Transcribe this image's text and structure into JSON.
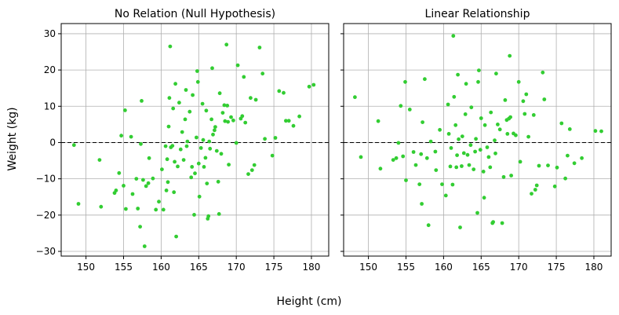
{
  "figure": {
    "xlabel": "Height (cm)",
    "ylabel": "Weight (kg)"
  },
  "style": {
    "point_color": "#32cd32",
    "grid_color": "#b0b0b0",
    "reference_line_color": "#000000"
  },
  "chart_data": [
    {
      "type": "scatter",
      "title": "No Relation (Null Hypothesis)",
      "xlim": [
        146.7,
        182.3
      ],
      "ylim": [
        -31.3,
        32.8
      ],
      "xticks": [
        150,
        155,
        160,
        165,
        170,
        175,
        180
      ],
      "yticks": [
        -30,
        -20,
        -10,
        0,
        10,
        20,
        30
      ],
      "ytick_labels": [
        "−30",
        "−20",
        "−10",
        "0",
        "10",
        "20",
        "30"
      ],
      "grid": true,
      "reference_line": {
        "y": 0,
        "style": "dashed"
      },
      "points": [
        [
          148.4,
          -0.7
        ],
        [
          149.0,
          -16.9
        ],
        [
          151.8,
          -4.8
        ],
        [
          152.0,
          -17.7
        ],
        [
          153.8,
          -13.9
        ],
        [
          154.0,
          -13.2
        ],
        [
          154.4,
          -8.4
        ],
        [
          154.7,
          1.9
        ],
        [
          155.0,
          -11.9
        ],
        [
          155.2,
          8.9
        ],
        [
          155.3,
          -18.3
        ],
        [
          156.0,
          1.6
        ],
        [
          156.2,
          -14.2
        ],
        [
          156.7,
          -10.0
        ],
        [
          156.9,
          -18.2
        ],
        [
          157.2,
          -23.2
        ],
        [
          157.3,
          -0.4
        ],
        [
          157.4,
          11.5
        ],
        [
          157.6,
          -10.3
        ],
        [
          157.8,
          -28.6
        ],
        [
          158.0,
          -12.0
        ],
        [
          158.3,
          -11.2
        ],
        [
          158.4,
          -4.3
        ],
        [
          158.9,
          -9.9
        ],
        [
          159.3,
          -18.5
        ],
        [
          159.7,
          -16.3
        ],
        [
          160.1,
          -7.4
        ],
        [
          160.3,
          -18.5
        ],
        [
          160.6,
          -1.0
        ],
        [
          160.7,
          -13.2
        ],
        [
          160.8,
          -4.6
        ],
        [
          160.9,
          -10.9
        ],
        [
          161.0,
          4.4
        ],
        [
          161.1,
          12.3
        ],
        [
          161.2,
          26.5
        ],
        [
          161.3,
          -1.3
        ],
        [
          161.5,
          -0.9
        ],
        [
          161.6,
          9.4
        ],
        [
          161.7,
          -13.7
        ],
        [
          161.8,
          -5.3
        ],
        [
          161.9,
          16.2
        ],
        [
          162.0,
          -25.9
        ],
        [
          162.2,
          -6.6
        ],
        [
          162.4,
          11.0
        ],
        [
          162.6,
          -1.9
        ],
        [
          162.8,
          2.9
        ],
        [
          163.0,
          -4.8
        ],
        [
          163.2,
          6.4
        ],
        [
          163.3,
          14.5
        ],
        [
          163.4,
          -1.0
        ],
        [
          163.5,
          0.3
        ],
        [
          163.8,
          8.5
        ],
        [
          164.0,
          -9.6
        ],
        [
          164.1,
          -6.7
        ],
        [
          164.2,
          13.1
        ],
        [
          164.4,
          -19.9
        ],
        [
          164.5,
          -8.5
        ],
        [
          164.7,
          1.4
        ],
        [
          164.8,
          19.7
        ],
        [
          164.9,
          16.7
        ],
        [
          165.0,
          -5.8
        ],
        [
          165.1,
          -14.9
        ],
        [
          165.3,
          -1.5
        ],
        [
          165.5,
          10.7
        ],
        [
          165.6,
          0.7
        ],
        [
          165.7,
          -6.7
        ],
        [
          165.9,
          -4.2
        ],
        [
          166.0,
          8.8
        ],
        [
          166.1,
          -11.3
        ],
        [
          166.2,
          -21.0
        ],
        [
          166.3,
          -20.3
        ],
        [
          166.4,
          0.3
        ],
        [
          166.5,
          -1.7
        ],
        [
          166.7,
          6.4
        ],
        [
          166.8,
          20.5
        ],
        [
          166.9,
          2.2
        ],
        [
          167.1,
          3.4
        ],
        [
          167.2,
          4.3
        ],
        [
          167.4,
          -2.3
        ],
        [
          167.6,
          -10.8
        ],
        [
          167.7,
          -19.7
        ],
        [
          167.8,
          13.6
        ],
        [
          168.0,
          -3.1
        ],
        [
          168.2,
          8.2
        ],
        [
          168.4,
          10.3
        ],
        [
          168.5,
          5.9
        ],
        [
          168.7,
          27.0
        ],
        [
          168.8,
          10.2
        ],
        [
          168.9,
          5.7
        ],
        [
          169.0,
          -6.1
        ],
        [
          169.3,
          7.0
        ],
        [
          169.6,
          6.1
        ],
        [
          170.0,
          -0.1
        ],
        [
          170.2,
          21.3
        ],
        [
          170.6,
          6.6
        ],
        [
          170.8,
          7.3
        ],
        [
          171.0,
          18.1
        ],
        [
          171.2,
          5.5
        ],
        [
          171.6,
          -8.7
        ],
        [
          171.9,
          12.3
        ],
        [
          172.1,
          -7.6
        ],
        [
          172.4,
          -6.2
        ],
        [
          172.6,
          11.8
        ],
        [
          173.1,
          26.2
        ],
        [
          173.5,
          19.0
        ],
        [
          173.8,
          1.0
        ],
        [
          174.8,
          -3.6
        ],
        [
          175.2,
          1.3
        ],
        [
          175.7,
          14.2
        ],
        [
          176.3,
          13.7
        ],
        [
          176.6,
          6.0
        ],
        [
          177.0,
          6.0
        ],
        [
          177.6,
          4.6
        ],
        [
          178.4,
          7.2
        ],
        [
          179.7,
          15.4
        ],
        [
          180.3,
          15.9
        ]
      ]
    },
    {
      "type": "scatter",
      "title": "Linear Relationship",
      "xlim": [
        146.7,
        182.3
      ],
      "ylim": [
        -31.3,
        32.8
      ],
      "xticks": [
        150,
        155,
        160,
        165,
        170,
        175,
        180
      ],
      "yticks": [
        -30,
        -20,
        -10,
        0,
        10,
        20,
        30
      ],
      "grid": true,
      "reference_line": {
        "y": 0,
        "style": "dashed"
      },
      "points": [
        [
          148.2,
          12.5
        ],
        [
          149.0,
          -4.0
        ],
        [
          151.3,
          5.9
        ],
        [
          151.6,
          -7.2
        ],
        [
          153.3,
          -4.8
        ],
        [
          153.7,
          -4.3
        ],
        [
          154.0,
          -0.1
        ],
        [
          154.3,
          10.1
        ],
        [
          154.6,
          -3.8
        ],
        [
          154.9,
          16.7
        ],
        [
          155.0,
          -10.4
        ],
        [
          155.5,
          9.1
        ],
        [
          156.0,
          -2.6
        ],
        [
          156.3,
          -6.2
        ],
        [
          156.8,
          -11.5
        ],
        [
          157.0,
          -3.2
        ],
        [
          157.1,
          -16.9
        ],
        [
          157.2,
          5.6
        ],
        [
          157.5,
          17.5
        ],
        [
          157.8,
          -4.3
        ],
        [
          158.0,
          -22.8
        ],
        [
          158.3,
          0.3
        ],
        [
          158.9,
          -2.5
        ],
        [
          159.0,
          -7.6
        ],
        [
          159.5,
          3.5
        ],
        [
          159.8,
          -11.5
        ],
        [
          160.3,
          -14.6
        ],
        [
          160.6,
          10.5
        ],
        [
          160.7,
          2.4
        ],
        [
          160.9,
          -6.6
        ],
        [
          161.0,
          -1.5
        ],
        [
          161.2,
          -11.6
        ],
        [
          161.3,
          29.4
        ],
        [
          161.4,
          12.6
        ],
        [
          161.6,
          4.8
        ],
        [
          161.7,
          -6.8
        ],
        [
          161.8,
          -3.5
        ],
        [
          161.9,
          18.7
        ],
        [
          162.0,
          0.9
        ],
        [
          162.2,
          -23.4
        ],
        [
          162.4,
          -6.5
        ],
        [
          162.5,
          1.7
        ],
        [
          162.7,
          -2.9
        ],
        [
          162.9,
          7.8
        ],
        [
          163.0,
          16.2
        ],
        [
          163.2,
          -3.4
        ],
        [
          163.4,
          -6.2
        ],
        [
          163.6,
          -0.7
        ],
        [
          163.7,
          9.7
        ],
        [
          164.0,
          -7.4
        ],
        [
          164.2,
          -2.5
        ],
        [
          164.3,
          1.0
        ],
        [
          164.5,
          -19.4
        ],
        [
          164.6,
          16.7
        ],
        [
          164.7,
          19.9
        ],
        [
          164.9,
          -2.0
        ],
        [
          165.0,
          6.7
        ],
        [
          165.3,
          -8.0
        ],
        [
          165.4,
          -15.2
        ],
        [
          165.5,
          4.8
        ],
        [
          165.8,
          -1.3
        ],
        [
          166.0,
          -4.0
        ],
        [
          166.2,
          -6.8
        ],
        [
          166.3,
          8.3
        ],
        [
          166.5,
          -22.2
        ],
        [
          166.6,
          -21.9
        ],
        [
          166.8,
          0.6
        ],
        [
          166.9,
          -3.0
        ],
        [
          167.0,
          19.0
        ],
        [
          167.2,
          5.0
        ],
        [
          167.5,
          3.6
        ],
        [
          167.8,
          -22.2
        ],
        [
          168.0,
          -9.5
        ],
        [
          168.2,
          11.7
        ],
        [
          168.4,
          6.2
        ],
        [
          168.5,
          2.4
        ],
        [
          168.7,
          6.6
        ],
        [
          168.8,
          23.9
        ],
        [
          168.9,
          7.0
        ],
        [
          169.0,
          -9.1
        ],
        [
          169.3,
          2.5
        ],
        [
          169.6,
          2.0
        ],
        [
          170.0,
          16.7
        ],
        [
          170.2,
          -5.3
        ],
        [
          170.6,
          11.4
        ],
        [
          170.8,
          7.9
        ],
        [
          171.0,
          13.3
        ],
        [
          171.3,
          1.6
        ],
        [
          171.7,
          -14.1
        ],
        [
          172.0,
          7.6
        ],
        [
          172.2,
          -13.0
        ],
        [
          172.4,
          -11.8
        ],
        [
          172.7,
          -6.4
        ],
        [
          173.2,
          19.3
        ],
        [
          173.4,
          11.9
        ],
        [
          173.9,
          -6.3
        ],
        [
          174.8,
          -12.1
        ],
        [
          175.1,
          -6.9
        ],
        [
          175.7,
          5.3
        ],
        [
          176.2,
          -9.9
        ],
        [
          176.5,
          -3.6
        ],
        [
          176.8,
          3.7
        ],
        [
          177.4,
          -5.7
        ],
        [
          178.4,
          -4.3
        ],
        [
          180.2,
          3.2
        ],
        [
          181.0,
          3.1
        ]
      ]
    }
  ]
}
